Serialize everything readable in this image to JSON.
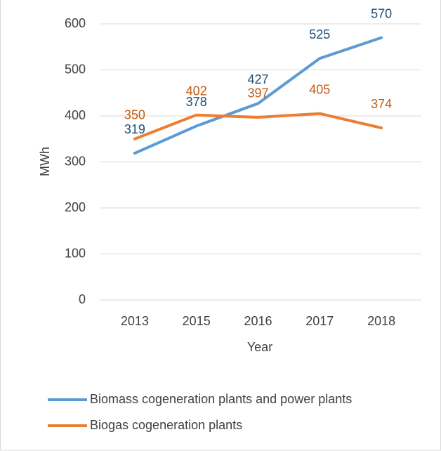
{
  "chart_data": {
    "type": "line",
    "x_label": "Year",
    "y_label": "MWh",
    "categories": [
      "2013",
      "2015",
      "2016",
      "2017",
      "2018"
    ],
    "series": [
      {
        "name": "Biomass cogeneration plants and power plants",
        "color": "#5b9bd5",
        "label_color": "#1f4e79",
        "values": [
          319,
          378,
          427,
          525,
          570
        ]
      },
      {
        "name": "Biogas cogeneration plants",
        "color": "#ed7d31",
        "label_color": "#c55a11",
        "values": [
          350,
          402,
          397,
          405,
          374
        ]
      }
    ],
    "ylim": [
      0,
      600
    ],
    "yticks": [
      0,
      100,
      200,
      300,
      400,
      500,
      600
    ],
    "grid": true,
    "legend": "bottom-left"
  }
}
